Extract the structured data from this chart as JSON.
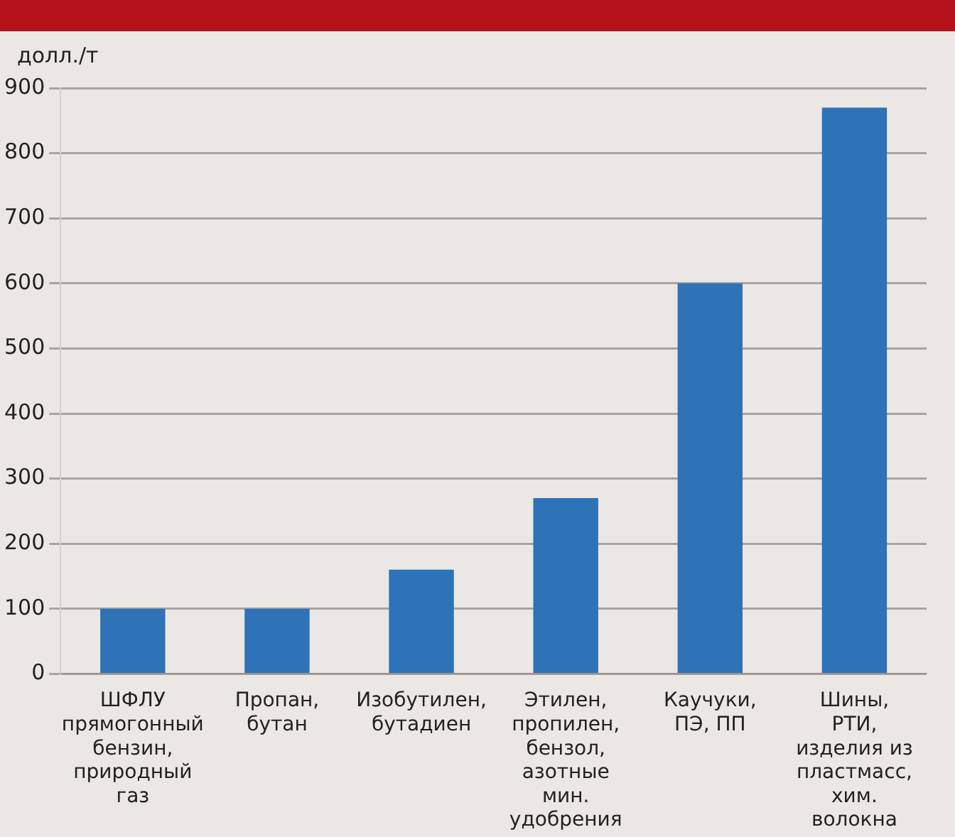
{
  "chart_data": {
    "type": "bar",
    "ylabel": "долл./т",
    "categories": [
      "ШФЛУ\nпрямогонный\nбензин,\nприродный\nгаз",
      "Пропан,\nбутан",
      "Изобутилен,\nбутадиен",
      "Этилен,\nпропилен,\nбензол,\nазотные\nмин.\nудобрения",
      "Каучуки,\nПЭ, ПП",
      "Шины,\nРТИ,\nизделия из\nпластмасс,\nхим.\nволокна"
    ],
    "values": [
      100,
      100,
      160,
      270,
      600,
      870
    ],
    "color": "#2e72b8",
    "ylim": [
      0,
      900
    ],
    "yticks": [
      0,
      100,
      200,
      300,
      400,
      500,
      600,
      700,
      800,
      900
    ],
    "grid": "y"
  }
}
